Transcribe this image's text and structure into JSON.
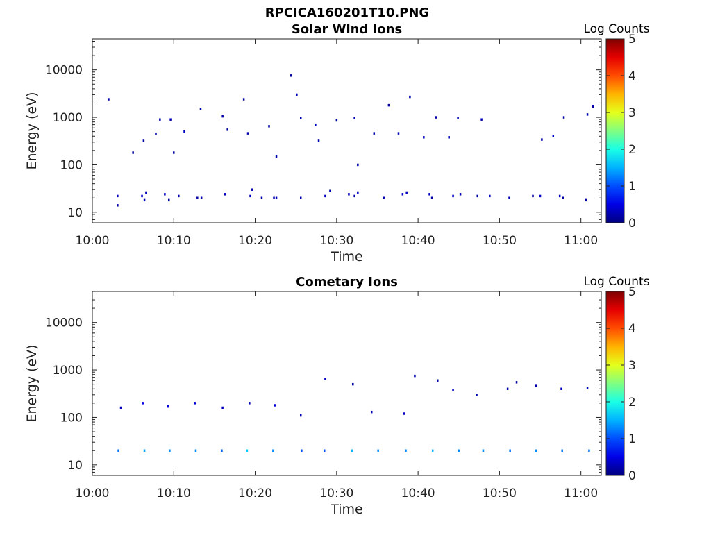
{
  "figure_title": "RPCICA160201T10.PNG",
  "chart_data": [
    {
      "type": "heatmap",
      "title": "Solar Wind Ions",
      "xlabel": "Time",
      "ylabel": "Energy (eV)",
      "xticks": [
        "10:00",
        "10:10",
        "10:20",
        "10:30",
        "10:40",
        "10:50",
        "11:00"
      ],
      "xlim_minutes": [
        0,
        62.5
      ],
      "yscale": "log",
      "yticks": [
        "10",
        "100",
        "1000",
        "10000"
      ],
      "ylim": [
        6,
        45000
      ],
      "colorbar": {
        "label": "Log Counts",
        "ticks": [
          "0",
          "1",
          "2",
          "3",
          "4",
          "5"
        ],
        "range": [
          0,
          5
        ],
        "colormap": "jet"
      },
      "cells": [
        [
          2,
          2400,
          0.2
        ],
        [
          3.1,
          22,
          0.3
        ],
        [
          3.1,
          14,
          0.2
        ],
        [
          6.1,
          22,
          0.3
        ],
        [
          6.4,
          18,
          0.2
        ],
        [
          6.6,
          26,
          0.3
        ],
        [
          8.9,
          24,
          0.3
        ],
        [
          9.4,
          18,
          0.2
        ],
        [
          10.6,
          22,
          0.2
        ],
        [
          12.9,
          20,
          0.2
        ],
        [
          13.4,
          20,
          0.2
        ],
        [
          16.3,
          24,
          0.3
        ],
        [
          19.4,
          22,
          0.3
        ],
        [
          19.6,
          30,
          0.3
        ],
        [
          20.8,
          20,
          0.2
        ],
        [
          22.3,
          20,
          0.2
        ],
        [
          22.6,
          20,
          0.3
        ],
        [
          25.6,
          20,
          0.2
        ],
        [
          28.6,
          22,
          0.3
        ],
        [
          29.2,
          28,
          0.2
        ],
        [
          31.5,
          24,
          0.3
        ],
        [
          32.2,
          22,
          0.2
        ],
        [
          32.6,
          26,
          0.3
        ],
        [
          35.8,
          20,
          0.2
        ],
        [
          38.1,
          24,
          0.3
        ],
        [
          38.6,
          26,
          0.3
        ],
        [
          41.4,
          24,
          0.3
        ],
        [
          41.7,
          20,
          0.2
        ],
        [
          44.3,
          22,
          0.3
        ],
        [
          45.2,
          24,
          0.3
        ],
        [
          47.3,
          22,
          0.2
        ],
        [
          48.8,
          22,
          0.3
        ],
        [
          51.2,
          20,
          0.3
        ],
        [
          54.1,
          22,
          0.2
        ],
        [
          55,
          22,
          0.3
        ],
        [
          57.4,
          22,
          0.3
        ],
        [
          57.8,
          20,
          0.2
        ],
        [
          60.6,
          18,
          0.2
        ],
        [
          5.0,
          180,
          0.2
        ],
        [
          6.3,
          320,
          0.2
        ],
        [
          7.8,
          450,
          0.2
        ],
        [
          8.3,
          900,
          0.2
        ],
        [
          9.6,
          900,
          0.2
        ],
        [
          10.0,
          180,
          0.2
        ],
        [
          11.3,
          500,
          0.3
        ],
        [
          13.3,
          1500,
          0.2
        ],
        [
          16.0,
          1050,
          0.2
        ],
        [
          16.6,
          550,
          0.2
        ],
        [
          18.6,
          2400,
          0.2
        ],
        [
          19.1,
          460,
          0.2
        ],
        [
          21.7,
          650,
          0.2
        ],
        [
          22.6,
          150,
          0.2
        ],
        [
          24.4,
          7600,
          0.2
        ],
        [
          25.1,
          3000,
          0.2
        ],
        [
          25.6,
          960,
          0.2
        ],
        [
          27.4,
          700,
          0.3
        ],
        [
          27.8,
          320,
          0.2
        ],
        [
          30.0,
          860,
          0.2
        ],
        [
          32.2,
          960,
          0.2
        ],
        [
          32.6,
          100,
          0.2
        ],
        [
          34.6,
          460,
          0.2
        ],
        [
          36.4,
          1800,
          0.2
        ],
        [
          37.6,
          460,
          0.3
        ],
        [
          39.0,
          2700,
          0.2
        ],
        [
          40.7,
          380,
          0.3
        ],
        [
          42.2,
          1000,
          0.2
        ],
        [
          43.8,
          380,
          0.3
        ],
        [
          44.9,
          960,
          0.2
        ],
        [
          47.8,
          900,
          0.2
        ],
        [
          55.2,
          340,
          0.2
        ],
        [
          56.6,
          400,
          0.3
        ],
        [
          57.9,
          1000,
          0.2
        ],
        [
          60.8,
          1150,
          0.2
        ],
        [
          61.5,
          1700,
          0.2
        ]
      ]
    },
    {
      "type": "heatmap",
      "title": "Cometary Ions",
      "xlabel": "Time",
      "ylabel": "Energy (eV)",
      "xticks": [
        "10:00",
        "10:10",
        "10:20",
        "10:30",
        "10:40",
        "10:50",
        "11:00"
      ],
      "xlim_minutes": [
        0,
        62.5
      ],
      "yscale": "log",
      "yticks": [
        "10",
        "100",
        "1000",
        "10000"
      ],
      "ylim": [
        6,
        45000
      ],
      "colorbar": {
        "label": "Log Counts",
        "ticks": [
          "0",
          "1",
          "2",
          "3",
          "4",
          "5"
        ],
        "range": [
          0,
          5
        ],
        "colormap": "jet"
      },
      "cells": [
        [
          3.2,
          20,
          1.2
        ],
        [
          6.4,
          20,
          1.4
        ],
        [
          9.5,
          20,
          1.3
        ],
        [
          12.7,
          20,
          1.3
        ],
        [
          15.9,
          20,
          1.1
        ],
        [
          19.0,
          20,
          1.6
        ],
        [
          22.2,
          20,
          1.3
        ],
        [
          25.7,
          20,
          1.0
        ],
        [
          28.5,
          20,
          1.0
        ],
        [
          31.9,
          20,
          1.5
        ],
        [
          35.1,
          20,
          1.3
        ],
        [
          38.5,
          20,
          1.3
        ],
        [
          41.8,
          20,
          1.5
        ],
        [
          45.0,
          20,
          1.3
        ],
        [
          48.0,
          20,
          1.3
        ],
        [
          51.3,
          20,
          1.2
        ],
        [
          54.5,
          20,
          1.3
        ],
        [
          57.7,
          20,
          1.2
        ],
        [
          61.0,
          20,
          1.2
        ],
        [
          3.5,
          160,
          0.3
        ],
        [
          6.2,
          200,
          0.5
        ],
        [
          9.3,
          170,
          0.4
        ],
        [
          12.6,
          200,
          0.4
        ],
        [
          16.0,
          160,
          0.3
        ],
        [
          19.3,
          200,
          0.3
        ],
        [
          22.4,
          180,
          0.5
        ],
        [
          25.6,
          110,
          0.3
        ],
        [
          28.6,
          650,
          0.3
        ],
        [
          32.0,
          500,
          0.2
        ],
        [
          34.3,
          130,
          0.3
        ],
        [
          38.3,
          120,
          0.3
        ],
        [
          39.6,
          750,
          0.2
        ],
        [
          42.4,
          600,
          0.2
        ],
        [
          44.3,
          380,
          0.3
        ],
        [
          47.2,
          300,
          0.2
        ],
        [
          51.0,
          400,
          0.2
        ],
        [
          52.1,
          550,
          0.2
        ],
        [
          54.5,
          460,
          0.2
        ],
        [
          57.6,
          400,
          0.3
        ],
        [
          60.8,
          420,
          0.3
        ]
      ]
    }
  ]
}
